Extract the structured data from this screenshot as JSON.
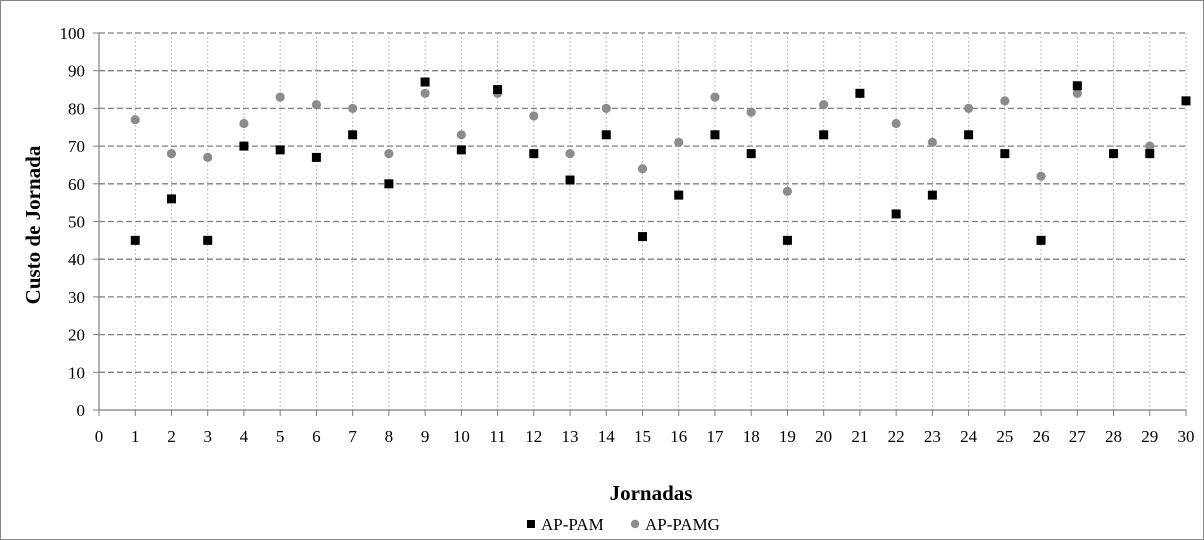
{
  "chart_data": {
    "type": "scatter",
    "xlabel": "Jornadas",
    "ylabel": "Custo de Jornada",
    "xlim": [
      0,
      30
    ],
    "ylim": [
      0,
      100
    ],
    "xticks": [
      "0",
      "1",
      "2",
      "3",
      "4",
      "5",
      "6",
      "7",
      "8",
      "9",
      "10",
      "11",
      "12",
      "13",
      "14",
      "15",
      "16",
      "17",
      "18",
      "19",
      "20",
      "21",
      "22",
      "23",
      "24",
      "25",
      "26",
      "27",
      "28",
      "29",
      "30"
    ],
    "yticks": [
      "0",
      "10",
      "20",
      "30",
      "40",
      "50",
      "60",
      "70",
      "80",
      "90",
      "100"
    ],
    "grid": "dashed-both",
    "legend_position": "bottom",
    "series": [
      {
        "name": "AP-PAM",
        "marker": "square",
        "color": "#000000",
        "x": [
          1,
          2,
          3,
          4,
          5,
          6,
          7,
          8,
          9,
          10,
          11,
          12,
          13,
          14,
          15,
          16,
          17,
          18,
          19,
          20,
          21,
          22,
          23,
          24,
          25,
          26,
          27,
          28,
          29,
          30
        ],
        "y": [
          45,
          56,
          45,
          70,
          69,
          67,
          73,
          60,
          87,
          69,
          85,
          68,
          61,
          73,
          46,
          57,
          73,
          68,
          45,
          73,
          84,
          52,
          57,
          73,
          68,
          45,
          86,
          68,
          68,
          82
        ]
      },
      {
        "name": "AP-PAMG",
        "marker": "circle",
        "color": "#8c8c8c",
        "x": [
          1,
          2,
          3,
          4,
          5,
          6,
          7,
          8,
          9,
          10,
          11,
          12,
          13,
          14,
          15,
          16,
          17,
          18,
          19,
          20,
          21,
          22,
          23,
          24,
          25,
          26,
          27,
          28,
          29,
          30
        ],
        "y": [
          77,
          68,
          67,
          76,
          83,
          81,
          80,
          68,
          84,
          73,
          84,
          78,
          68,
          80,
          64,
          71,
          83,
          79,
          58,
          81,
          84,
          76,
          71,
          80,
          82,
          62,
          84,
          68,
          70,
          82
        ]
      }
    ]
  }
}
